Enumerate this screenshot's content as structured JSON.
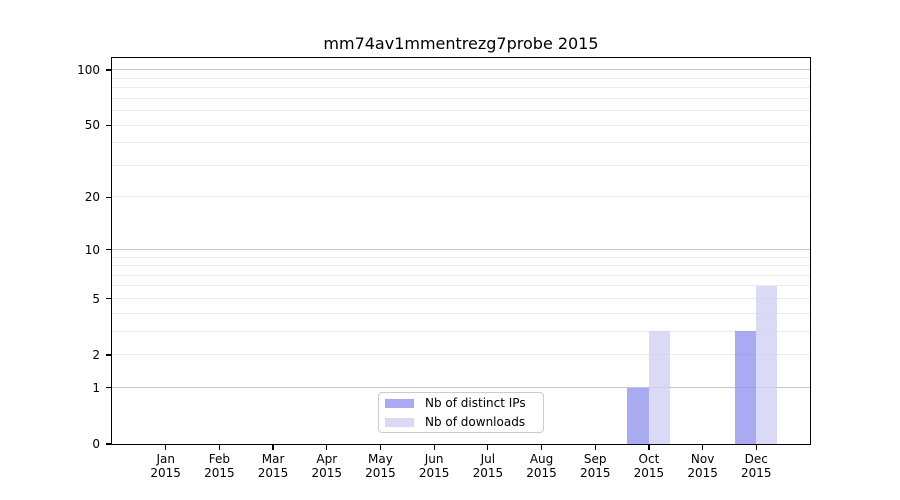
{
  "chart_data": {
    "type": "bar",
    "title": "mm74av1mmentrezg7probe 2015",
    "categories": [
      "Jan 2015",
      "Feb 2015",
      "Mar 2015",
      "Apr 2015",
      "May 2015",
      "Jun 2015",
      "Jul 2015",
      "Aug 2015",
      "Sep 2015",
      "Oct 2015",
      "Nov 2015",
      "Dec 2015"
    ],
    "series": [
      {
        "name": "Nb of distinct IPs",
        "values": [
          0,
          0,
          0,
          0,
          0,
          0,
          0,
          0,
          0,
          1,
          0,
          3
        ],
        "color": "rgba(146,146,240,0.78)",
        "color_hex": "#aaaaee"
      },
      {
        "name": "Nb of downloads",
        "values": [
          0,
          0,
          0,
          0,
          0,
          0,
          0,
          0,
          0,
          3,
          0,
          6
        ],
        "color": "rgba(207,207,245,0.78)",
        "color_hex": "#d9d9f7"
      }
    ],
    "yscale": "log1p",
    "ylim": [
      0,
      116
    ],
    "yticks": [
      0,
      1,
      2,
      5,
      10,
      20,
      50,
      100
    ],
    "y_major_gridlines": [
      1,
      10,
      100
    ],
    "y_minor_gridlines": [
      2,
      3,
      4,
      5,
      6,
      7,
      8,
      9,
      20,
      30,
      40,
      50,
      60,
      70,
      80,
      90
    ],
    "grid": true,
    "legend_position": "lower center",
    "xlabel": "",
    "ylabel": ""
  },
  "colors": {
    "background": "#ffffff",
    "axis": "#000000",
    "grid_major": "#c6c6c6",
    "grid_minor": "#ebebeb",
    "text": "#000000",
    "legend_border": "#cccccc"
  }
}
